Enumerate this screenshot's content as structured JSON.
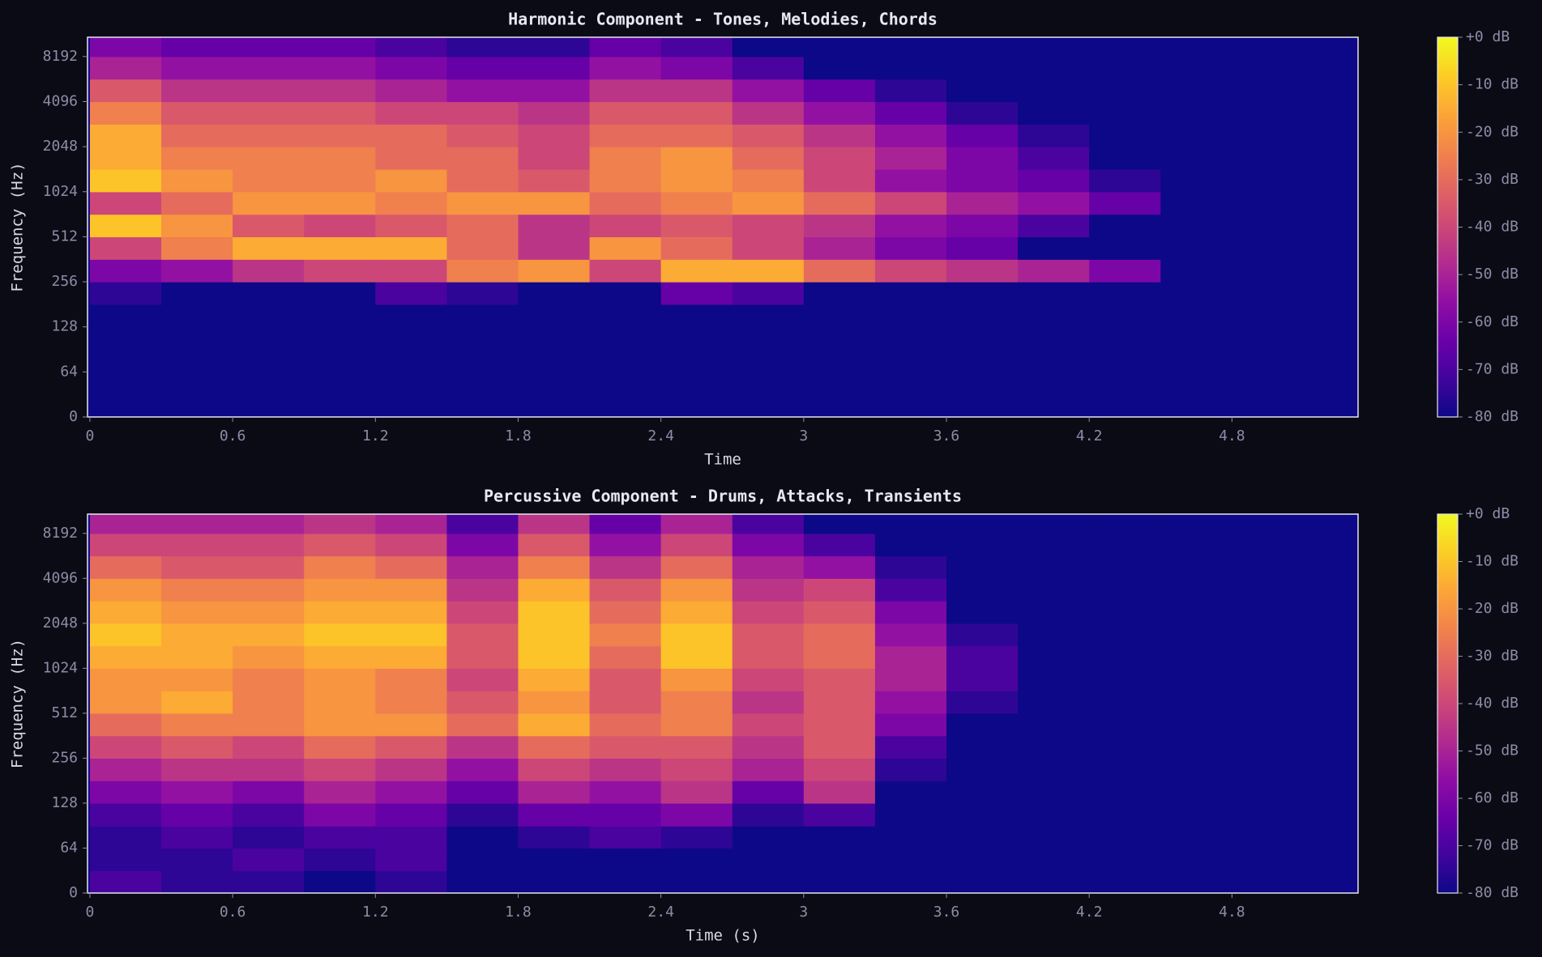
{
  "chart_data": [
    {
      "type": "heatmap",
      "title": "Harmonic Component - Tones, Melodies, Chords",
      "xlabel": "Time",
      "ylabel": "Frequency (Hz)",
      "xlim": [
        -0.01,
        5.33
      ],
      "xticks": [
        0,
        0.6,
        1.2,
        1.8,
        2.4,
        3,
        3.6,
        4.2,
        4.8
      ],
      "ylim": [
        0,
        11025
      ],
      "yscale": "symlog",
      "linthresh": 64,
      "yticks": [
        0,
        64,
        128,
        256,
        512,
        1024,
        2048,
        4096,
        8192
      ],
      "xbins": [
        0,
        0.3,
        0.6,
        0.9,
        1.2,
        1.5,
        1.8,
        2.1,
        2.4,
        2.7,
        3.0,
        3.3,
        3.6,
        3.9,
        4.2,
        4.5,
        4.8,
        5.1,
        5.33
      ],
      "ybins": [
        0,
        32,
        64,
        90,
        128,
        181,
        256,
        362,
        512,
        724,
        1024,
        1448,
        2048,
        2896,
        4096,
        5793,
        8192,
        11025
      ],
      "z": [
        [
          -80,
          -80,
          -80,
          -80,
          -80,
          -80,
          -80,
          -80,
          -80,
          -80,
          -80,
          -80,
          -80,
          -80,
          -80,
          -80,
          -80,
          -80
        ],
        [
          -80,
          -80,
          -80,
          -80,
          -80,
          -80,
          -80,
          -80,
          -80,
          -80,
          -80,
          -80,
          -80,
          -80,
          -80,
          -80,
          -80,
          -80
        ],
        [
          -80,
          -80,
          -80,
          -80,
          -80,
          -80,
          -80,
          -80,
          -80,
          -80,
          -80,
          -80,
          -80,
          -80,
          -80,
          -80,
          -80,
          -80
        ],
        [
          -80,
          -80,
          -80,
          -80,
          -80,
          -80,
          -80,
          -80,
          -80,
          -80,
          -80,
          -80,
          -80,
          -80,
          -80,
          -80,
          -80,
          -80
        ],
        [
          -80,
          -80,
          -80,
          -80,
          -80,
          -80,
          -80,
          -80,
          -80,
          -80,
          -80,
          -80,
          -80,
          -80,
          -80,
          -80,
          -80,
          -80
        ],
        [
          -75,
          -80,
          -80,
          -80,
          -70,
          -75,
          -80,
          -80,
          -65,
          -70,
          -80,
          -80,
          -80,
          -80,
          -80,
          -80,
          -80,
          -80
        ],
        [
          -60,
          -55,
          -45,
          -40,
          -40,
          -25,
          -20,
          -40,
          -15,
          -15,
          -30,
          -40,
          -45,
          -50,
          -60,
          -80,
          -80,
          -80
        ],
        [
          -40,
          -25,
          -15,
          -15,
          -15,
          -30,
          -45,
          -20,
          -30,
          -40,
          -50,
          -60,
          -65,
          -80,
          -80,
          -80,
          -80,
          -80
        ],
        [
          -10,
          -20,
          -35,
          -40,
          -35,
          -30,
          -45,
          -40,
          -35,
          -40,
          -45,
          -55,
          -60,
          -70,
          -80,
          -80,
          -80,
          -80
        ],
        [
          -40,
          -30,
          -20,
          -20,
          -25,
          -20,
          -20,
          -30,
          -25,
          -20,
          -30,
          -40,
          -50,
          -55,
          -65,
          -80,
          -80,
          -80
        ],
        [
          -10,
          -20,
          -25,
          -25,
          -20,
          -30,
          -35,
          -25,
          -20,
          -25,
          -40,
          -55,
          -60,
          -65,
          -75,
          -80,
          -80,
          -80
        ],
        [
          -15,
          -25,
          -25,
          -25,
          -30,
          -30,
          -40,
          -25,
          -20,
          -30,
          -40,
          -50,
          -60,
          -70,
          -80,
          -80,
          -80,
          -80
        ],
        [
          -15,
          -30,
          -30,
          -30,
          -30,
          -35,
          -40,
          -30,
          -30,
          -35,
          -45,
          -55,
          -65,
          -75,
          -80,
          -80,
          -80,
          -80
        ],
        [
          -25,
          -35,
          -35,
          -35,
          -40,
          -40,
          -45,
          -35,
          -35,
          -45,
          -55,
          -65,
          -75,
          -80,
          -80,
          -80,
          -80,
          -80
        ],
        [
          -35,
          -45,
          -45,
          -45,
          -50,
          -55,
          -55,
          -45,
          -45,
          -55,
          -65,
          -75,
          -80,
          -80,
          -80,
          -80,
          -80,
          -80
        ],
        [
          -50,
          -55,
          -55,
          -55,
          -60,
          -65,
          -65,
          -55,
          -60,
          -70,
          -80,
          -80,
          -80,
          -80,
          -80,
          -80,
          -80,
          -80
        ],
        [
          -60,
          -65,
          -65,
          -65,
          -70,
          -75,
          -75,
          -65,
          -70,
          -80,
          -80,
          -80,
          -80,
          -80,
          -80,
          -80,
          -80,
          -80
        ]
      ],
      "clim": [
        -80,
        0
      ],
      "cticks": [
        {
          "value": 0,
          "label": "+0 dB"
        },
        {
          "value": -10,
          "label": "-10 dB"
        },
        {
          "value": -20,
          "label": "-20 dB"
        },
        {
          "value": -30,
          "label": "-30 dB"
        },
        {
          "value": -40,
          "label": "-40 dB"
        },
        {
          "value": -50,
          "label": "-50 dB"
        },
        {
          "value": -60,
          "label": "-60 dB"
        },
        {
          "value": -70,
          "label": "-70 dB"
        },
        {
          "value": -80,
          "label": "-80 dB"
        }
      ],
      "colormap": [
        "#0d0887",
        "#41049d",
        "#6a00a8",
        "#8f0da4",
        "#b12a90",
        "#cc4778",
        "#e16462",
        "#f2844b",
        "#fca636",
        "#fcce25",
        "#f0f921"
      ]
    },
    {
      "type": "heatmap",
      "title": "Percussive Component - Drums, Attacks, Transients",
      "xlabel": "Time (s)",
      "ylabel": "Frequency (Hz)",
      "xlim": [
        -0.01,
        5.33
      ],
      "xticks": [
        0,
        0.6,
        1.2,
        1.8,
        2.4,
        3,
        3.6,
        4.2,
        4.8
      ],
      "ylim": [
        0,
        11025
      ],
      "yscale": "symlog",
      "linthresh": 64,
      "yticks": [
        0,
        64,
        128,
        256,
        512,
        1024,
        2048,
        4096,
        8192
      ],
      "xbins": [
        0,
        0.3,
        0.6,
        0.9,
        1.2,
        1.5,
        1.8,
        2.1,
        2.4,
        2.7,
        3.0,
        3.3,
        3.6,
        3.9,
        4.2,
        4.5,
        4.8,
        5.1,
        5.33
      ],
      "ybins": [
        0,
        32,
        64,
        90,
        128,
        181,
        256,
        362,
        512,
        724,
        1024,
        1448,
        2048,
        2896,
        4096,
        5793,
        8192,
        11025
      ],
      "z": [
        [
          -70,
          -75,
          -75,
          -80,
          -75,
          -80,
          -80,
          -80,
          -80,
          -80,
          -80,
          -80,
          -80,
          -80,
          -80,
          -80,
          -80,
          -80
        ],
        [
          -75,
          -75,
          -70,
          -75,
          -70,
          -80,
          -80,
          -80,
          -80,
          -80,
          -80,
          -80,
          -80,
          -80,
          -80,
          -80,
          -80,
          -80
        ],
        [
          -75,
          -70,
          -75,
          -70,
          -70,
          -80,
          -75,
          -70,
          -75,
          -80,
          -80,
          -80,
          -80,
          -80,
          -80,
          -80,
          -80,
          -80
        ],
        [
          -70,
          -65,
          -70,
          -60,
          -65,
          -75,
          -65,
          -65,
          -60,
          -75,
          -70,
          -80,
          -80,
          -80,
          -80,
          -80,
          -80,
          -80
        ],
        [
          -60,
          -55,
          -60,
          -50,
          -55,
          -65,
          -50,
          -55,
          -45,
          -65,
          -45,
          -80,
          -80,
          -80,
          -80,
          -80,
          -80,
          -80
        ],
        [
          -50,
          -45,
          -45,
          -40,
          -45,
          -55,
          -40,
          -45,
          -40,
          -50,
          -40,
          -75,
          -80,
          -80,
          -80,
          -80,
          -80,
          -80
        ],
        [
          -40,
          -35,
          -40,
          -30,
          -35,
          -45,
          -30,
          -35,
          -35,
          -45,
          -35,
          -70,
          -80,
          -80,
          -80,
          -80,
          -80,
          -80
        ],
        [
          -30,
          -25,
          -25,
          -20,
          -20,
          -30,
          -15,
          -30,
          -25,
          -40,
          -35,
          -60,
          -80,
          -80,
          -80,
          -80,
          -80,
          -80
        ],
        [
          -20,
          -15,
          -25,
          -20,
          -25,
          -35,
          -20,
          -35,
          -25,
          -45,
          -35,
          -55,
          -75,
          -80,
          -80,
          -80,
          -80,
          -80
        ],
        [
          -20,
          -20,
          -25,
          -20,
          -25,
          -40,
          -15,
          -35,
          -20,
          -40,
          -35,
          -50,
          -70,
          -80,
          -80,
          -80,
          -80,
          -80
        ],
        [
          -15,
          -15,
          -20,
          -15,
          -15,
          -35,
          -10,
          -30,
          -10,
          -35,
          -30,
          -50,
          -70,
          -80,
          -80,
          -80,
          -80,
          -80
        ],
        [
          -10,
          -15,
          -15,
          -10,
          -10,
          -35,
          -10,
          -25,
          -10,
          -35,
          -30,
          -55,
          -75,
          -80,
          -80,
          -80,
          -80,
          -80
        ],
        [
          -15,
          -20,
          -20,
          -15,
          -15,
          -40,
          -10,
          -30,
          -15,
          -40,
          -35,
          -60,
          -80,
          -80,
          -80,
          -80,
          -80,
          -80
        ],
        [
          -20,
          -25,
          -25,
          -20,
          -20,
          -45,
          -15,
          -35,
          -20,
          -45,
          -40,
          -70,
          -80,
          -80,
          -80,
          -80,
          -80,
          -80
        ],
        [
          -30,
          -35,
          -35,
          -25,
          -30,
          -50,
          -25,
          -45,
          -30,
          -50,
          -55,
          -75,
          -80,
          -80,
          -80,
          -80,
          -80,
          -80
        ],
        [
          -40,
          -40,
          -40,
          -35,
          -40,
          -60,
          -35,
          -55,
          -40,
          -60,
          -70,
          -80,
          -80,
          -80,
          -80,
          -80,
          -80,
          -80
        ],
        [
          -50,
          -50,
          -50,
          -45,
          -50,
          -70,
          -45,
          -65,
          -50,
          -70,
          -80,
          -80,
          -80,
          -80,
          -80,
          -80,
          -80,
          -80
        ]
      ],
      "clim": [
        -80,
        0
      ],
      "cticks": [
        {
          "value": 0,
          "label": "+0 dB"
        },
        {
          "value": -10,
          "label": "-10 dB"
        },
        {
          "value": -20,
          "label": "-20 dB"
        },
        {
          "value": -30,
          "label": "-30 dB"
        },
        {
          "value": -40,
          "label": "-40 dB"
        },
        {
          "value": -50,
          "label": "-50 dB"
        },
        {
          "value": -60,
          "label": "-60 dB"
        },
        {
          "value": -70,
          "label": "-70 dB"
        },
        {
          "value": -80,
          "label": "-80 dB"
        }
      ],
      "colormap": [
        "#0d0887",
        "#41049d",
        "#6a00a8",
        "#8f0da4",
        "#b12a90",
        "#cc4778",
        "#e16462",
        "#f2844b",
        "#fca636",
        "#fcce25",
        "#f0f921"
      ]
    }
  ]
}
